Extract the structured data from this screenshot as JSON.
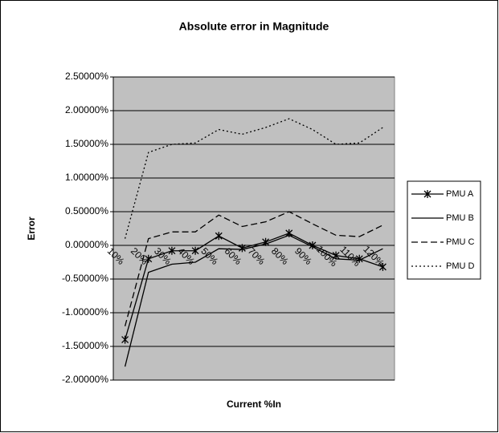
{
  "chart_data": {
    "type": "line",
    "title": "Absolute error in Magnitude",
    "xlabel": "Current %In",
    "ylabel": "Error",
    "categories": [
      "10%",
      "20%",
      "30%",
      "40%",
      "50%",
      "60%",
      "70%",
      "80%",
      "90%",
      "100%",
      "110%",
      "120%"
    ],
    "series": [
      {
        "name": "PMU A",
        "color": "#000000",
        "dash": "none",
        "marker": "star",
        "values": [
          -1.4,
          -0.2,
          -0.08,
          -0.08,
          0.14,
          -0.04,
          0.05,
          0.18,
          0.0,
          -0.15,
          -0.2,
          -0.32
        ]
      },
      {
        "name": "PMU B",
        "color": "#000000",
        "dash": "none",
        "values": [
          -1.8,
          -0.4,
          -0.28,
          -0.25,
          -0.05,
          -0.06,
          0.02,
          0.15,
          -0.02,
          -0.2,
          -0.22,
          -0.05
        ]
      },
      {
        "name": "PMU C",
        "color": "#000000",
        "dash": "8,4",
        "values": [
          -1.2,
          0.1,
          0.2,
          0.2,
          0.45,
          0.28,
          0.35,
          0.5,
          0.32,
          0.15,
          0.13,
          0.3
        ]
      },
      {
        "name": "PMU D",
        "color": "#000000",
        "dash": "2,3",
        "values": [
          0.1,
          1.38,
          1.5,
          1.52,
          1.72,
          1.65,
          1.75,
          1.88,
          1.72,
          1.5,
          1.52,
          1.75
        ]
      }
    ],
    "ylim": [
      -2.0,
      2.5
    ],
    "yticks": [
      {
        "value": -2.0,
        "label": "-2.00000%"
      },
      {
        "value": -1.5,
        "label": "-1.50000%"
      },
      {
        "value": -1.0,
        "label": "-1.00000%"
      },
      {
        "value": -0.5,
        "label": "-0.50000%"
      },
      {
        "value": 0,
        "label": "0.00000%"
      },
      {
        "value": 0.5,
        "label": "0.50000%"
      },
      {
        "value": 1.0,
        "label": "1.00000%"
      },
      {
        "value": 1.5,
        "label": "1.50000%"
      },
      {
        "value": 2.0,
        "label": "2.00000%"
      },
      {
        "value": 2.5,
        "label": "2.50000%"
      }
    ],
    "grid": true,
    "plot_background": "#c0c0c0",
    "legend": "right"
  }
}
